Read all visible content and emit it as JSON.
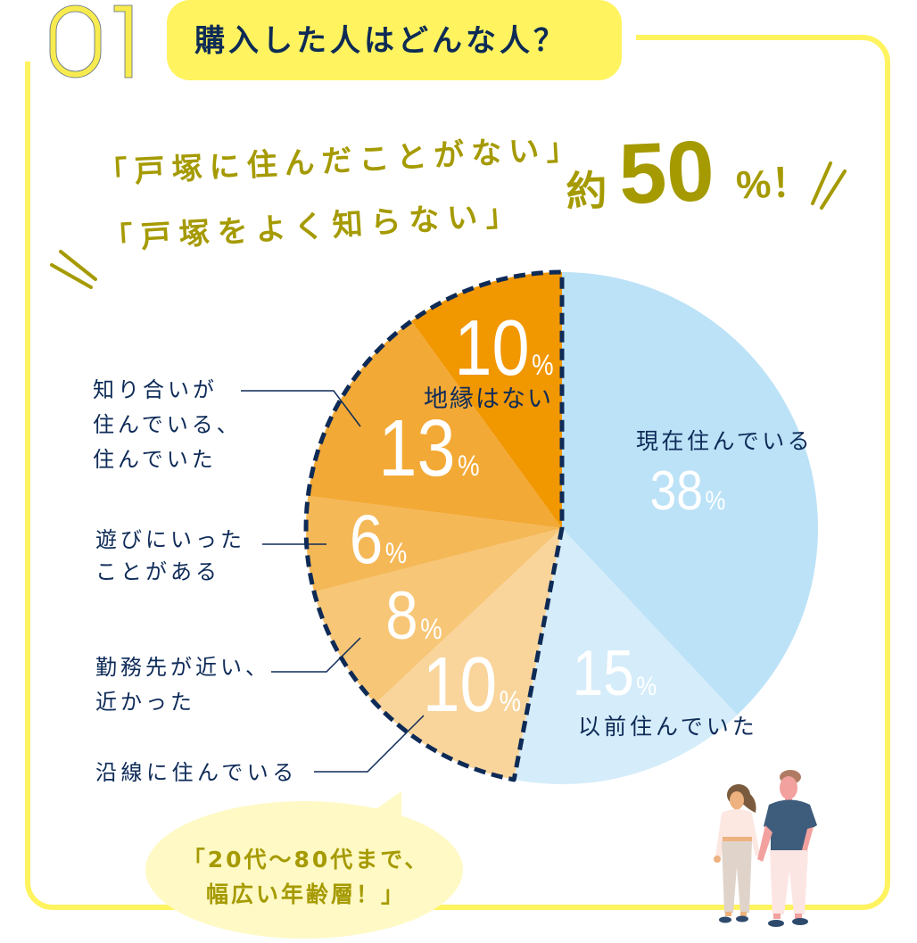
{
  "header": {
    "number": "01",
    "title": "購入した人はどんな人？"
  },
  "headline": {
    "line1": "「戸塚に住んだことがない」",
    "line2": "「戸塚をよく知らない」",
    "prefix": "約",
    "value": "50",
    "unit": "%",
    "suffix": "！"
  },
  "chart_data": {
    "type": "pie",
    "title": "購入した人はどんな人？",
    "unit": "%",
    "start_angle_deg": 0,
    "direction": "clockwise",
    "categories": [
      "現在住んでいる",
      "以前住んでいた",
      "沿線に住んでいる",
      "勤務先が近い、近かった",
      "遊びにいったことがある",
      "知り合いが住んでいる、住んでいた",
      "地縁はない"
    ],
    "values": [
      38,
      15,
      10,
      8,
      6,
      13,
      10
    ],
    "slices": [
      {
        "label": "現在住んでいる",
        "lines": [
          "現在住んでいる"
        ],
        "value": 38,
        "color": "#BCE2F7"
      },
      {
        "label": "以前住んでいた",
        "lines": [
          "以前住んでいた"
        ],
        "value": 15,
        "color": "#D5ECFA"
      },
      {
        "label": "沿線に住んでいる",
        "lines": [
          "沿線に住んでいる"
        ],
        "value": 10,
        "color": "#F9D59C"
      },
      {
        "label": "勤務先が近い、近かった",
        "lines": [
          "勤務先が近い、",
          "近かった"
        ],
        "value": 8,
        "color": "#F7C676"
      },
      {
        "label": "遊びにいったことがある",
        "lines": [
          "遊びにいった",
          "ことがある"
        ],
        "value": 6,
        "color": "#F5B857"
      },
      {
        "label": "知り合いが住んでいる、住んでいた",
        "lines": [
          "知り合いが",
          "住んでいる、",
          "住んでいた"
        ],
        "value": 13,
        "color": "#F3A935"
      },
      {
        "label": "地縁はない",
        "lines": [
          "地縁はない"
        ],
        "value": 10,
        "color": "#F19700"
      }
    ],
    "highlight_group": {
      "slice_indices": [
        2,
        3,
        4,
        5,
        6
      ],
      "total_label": "約50%",
      "outline": "dashed",
      "color": "#0E2A56"
    },
    "legend": "none",
    "grid": false
  },
  "bubble": {
    "line1": "「20代～80代まで、",
    "line2": "幅広い年齢層！」"
  },
  "colors": {
    "accent_yellow": "#FFF35F",
    "olive_text": "#A59A00",
    "navy": "#0E2B58",
    "bubble_fill": "#FFF9C5"
  }
}
